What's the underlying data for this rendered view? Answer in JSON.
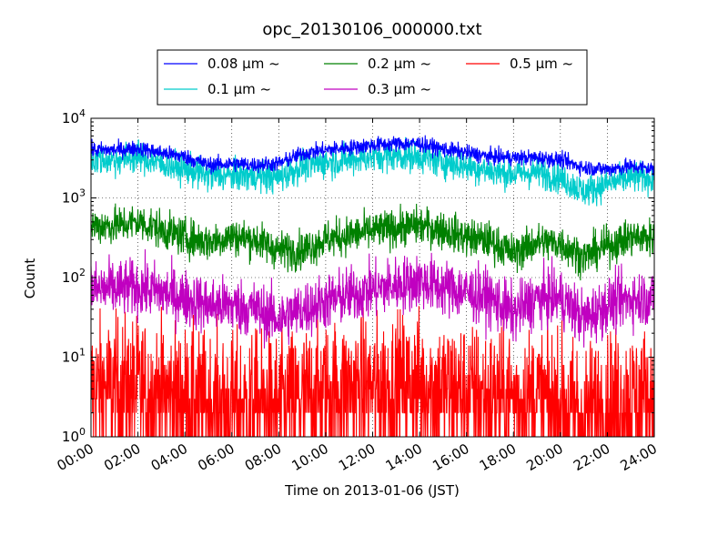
{
  "chart_data": {
    "type": "line",
    "title": "opc_20130106_000000.txt",
    "xlabel": "Time on 2013-01-06 (JST)",
    "ylabel": "Count",
    "yscale": "log",
    "xlim": [
      "00:00",
      "24:00"
    ],
    "ylim": [
      1,
      10000
    ],
    "x_ticks": [
      "00:00",
      "02:00",
      "04:00",
      "06:00",
      "08:00",
      "10:00",
      "12:00",
      "14:00",
      "16:00",
      "18:00",
      "20:00",
      "22:00",
      "24:00"
    ],
    "y_ticks": [
      {
        "base": "10",
        "exp": "0"
      },
      {
        "base": "10",
        "exp": "1"
      },
      {
        "base": "10",
        "exp": "2"
      },
      {
        "base": "10",
        "exp": "3"
      },
      {
        "base": "10",
        "exp": "4"
      }
    ],
    "grid": true,
    "legend_position": "top",
    "x": [
      "00:00",
      "01:00",
      "02:00",
      "03:00",
      "04:00",
      "05:00",
      "06:00",
      "07:00",
      "08:00",
      "09:00",
      "10:00",
      "11:00",
      "12:00",
      "13:00",
      "14:00",
      "15:00",
      "16:00",
      "17:00",
      "18:00",
      "19:00",
      "20:00",
      "21:00",
      "22:00",
      "23:00",
      "24:00"
    ],
    "series": [
      {
        "name": "0.08 μm ~",
        "color": "#0000ff",
        "noise": 0.05,
        "values": [
          4000,
          4000,
          4200,
          3700,
          3300,
          2600,
          2700,
          2600,
          2700,
          3600,
          4000,
          4300,
          4600,
          4800,
          4800,
          4100,
          3700,
          3300,
          3200,
          3200,
          3000,
          2400,
          2300,
          2500,
          2300
        ]
      },
      {
        "name": "0.1 μm ~",
        "color": "#00cccc",
        "noise": 0.1,
        "values": [
          3000,
          3000,
          3300,
          2700,
          2300,
          1900,
          1900,
          1900,
          1800,
          2500,
          2800,
          3000,
          3300,
          3400,
          3300,
          2800,
          2500,
          2200,
          2000,
          2100,
          1800,
          1200,
          1500,
          1800,
          1800
        ]
      },
      {
        "name": "0.2 μm ~",
        "color": "#008000",
        "noise": 0.12,
        "values": [
          450,
          450,
          500,
          400,
          320,
          280,
          330,
          300,
          220,
          220,
          300,
          340,
          380,
          420,
          450,
          400,
          320,
          290,
          200,
          280,
          270,
          180,
          250,
          320,
          320
        ]
      },
      {
        "name": "0.3 μm ~",
        "color": "#c000c0",
        "noise": 0.18,
        "values": [
          70,
          72,
          75,
          65,
          55,
          45,
          45,
          40,
          30,
          40,
          50,
          60,
          70,
          80,
          90,
          75,
          65,
          55,
          35,
          55,
          55,
          30,
          45,
          55,
          55
        ]
      },
      {
        "name": "0.5 μm ~",
        "color": "#ff0000",
        "noise": 0.45,
        "values": [
          4,
          4,
          4,
          3.5,
          3,
          2.5,
          2.5,
          2.5,
          2.5,
          3,
          3.5,
          4,
          4,
          4.5,
          4.5,
          4,
          3.5,
          3,
          3,
          3,
          2.5,
          2,
          2.5,
          3,
          3
        ]
      }
    ]
  }
}
